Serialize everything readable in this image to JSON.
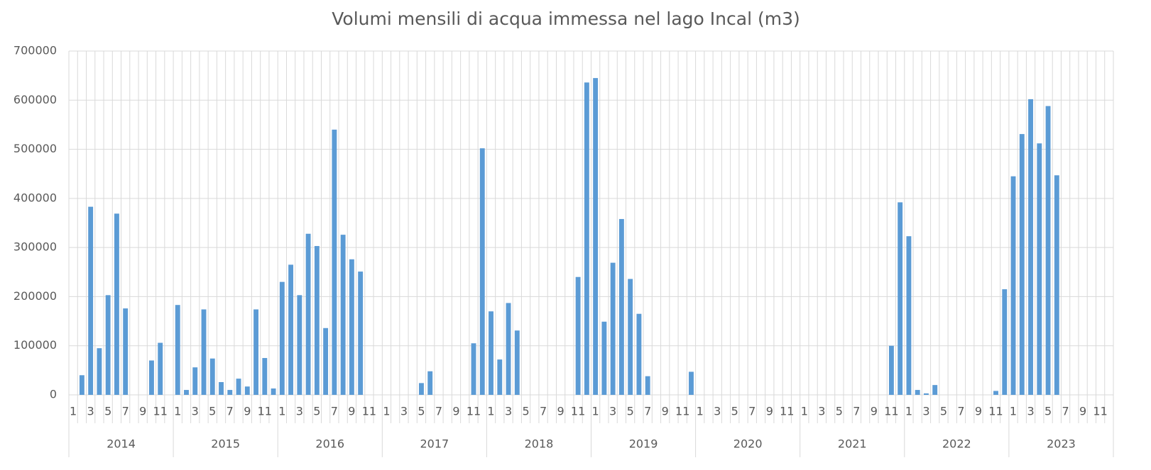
{
  "chart_data": {
    "type": "bar",
    "title": "Volumi mensili di acqua immessa nel lago Incal (m3)",
    "categories": [
      "1",
      null,
      "3",
      null,
      "5",
      null,
      "7",
      null,
      "9",
      null,
      "11",
      null,
      "1",
      null,
      "3",
      null,
      "5",
      null,
      "7",
      null,
      "9",
      null,
      "11",
      null,
      "1",
      null,
      "3",
      null,
      "5",
      null,
      "7",
      null,
      "9",
      null,
      "11",
      null,
      "1",
      null,
      "3",
      null,
      "5",
      null,
      "7",
      null,
      "9",
      null,
      "11",
      null,
      "1",
      null,
      "3",
      null,
      "5",
      null,
      "7",
      null,
      "9",
      null,
      "11",
      null,
      "1",
      null,
      "3",
      null,
      "5",
      null,
      "7",
      null,
      "9",
      null,
      "11",
      null,
      "1",
      null,
      "3",
      null,
      "5",
      null,
      "7",
      null,
      "9",
      null,
      "11",
      null,
      "1",
      null,
      "3",
      null,
      "5",
      null,
      "7",
      null,
      "9",
      null,
      "11",
      null,
      "1",
      null,
      "3",
      null,
      "5",
      null,
      "7",
      null,
      "9",
      null,
      "11",
      null,
      "1",
      null,
      "3",
      null,
      "5",
      null,
      "7",
      null,
      "9",
      null,
      "11",
      null
    ],
    "years": [
      "2014",
      "2015",
      "2016",
      "2017",
      "2018",
      "2019",
      "2020",
      "2021",
      "2022",
      "2023"
    ],
    "values": [
      0,
      40000,
      383000,
      95000,
      203000,
      369000,
      176000,
      0,
      0,
      70000,
      106000,
      0,
      183000,
      10000,
      56000,
      174000,
      74000,
      26000,
      10000,
      33000,
      17000,
      174000,
      75000,
      13000,
      230000,
      265000,
      203000,
      328000,
      303000,
      136000,
      540000,
      326000,
      276000,
      251000,
      0,
      0,
      0,
      0,
      0,
      0,
      24000,
      48000,
      0,
      0,
      0,
      0,
      105000,
      502000,
      170000,
      72000,
      187000,
      131000,
      0,
      0,
      0,
      0,
      0,
      0,
      240000,
      636000,
      645000,
      149000,
      269000,
      358000,
      236000,
      165000,
      38000,
      0,
      0,
      0,
      0,
      47000,
      0,
      0,
      0,
      0,
      0,
      0,
      0,
      0,
      0,
      0,
      0,
      0,
      0,
      0,
      0,
      0,
      0,
      0,
      0,
      0,
      0,
      0,
      100000,
      392000,
      323000,
      10000,
      3000,
      20000,
      0,
      0,
      0,
      0,
      0,
      0,
      8000,
      215000,
      445000,
      531000,
      602000,
      512000,
      588000,
      447000,
      0,
      0,
      0,
      0,
      0,
      0
    ],
    "color": "#5b9bd5",
    "ylim": [
      0,
      700000
    ],
    "yticks": [
      0,
      100000,
      200000,
      300000,
      400000,
      500000,
      600000,
      700000
    ],
    "grid": true
  }
}
